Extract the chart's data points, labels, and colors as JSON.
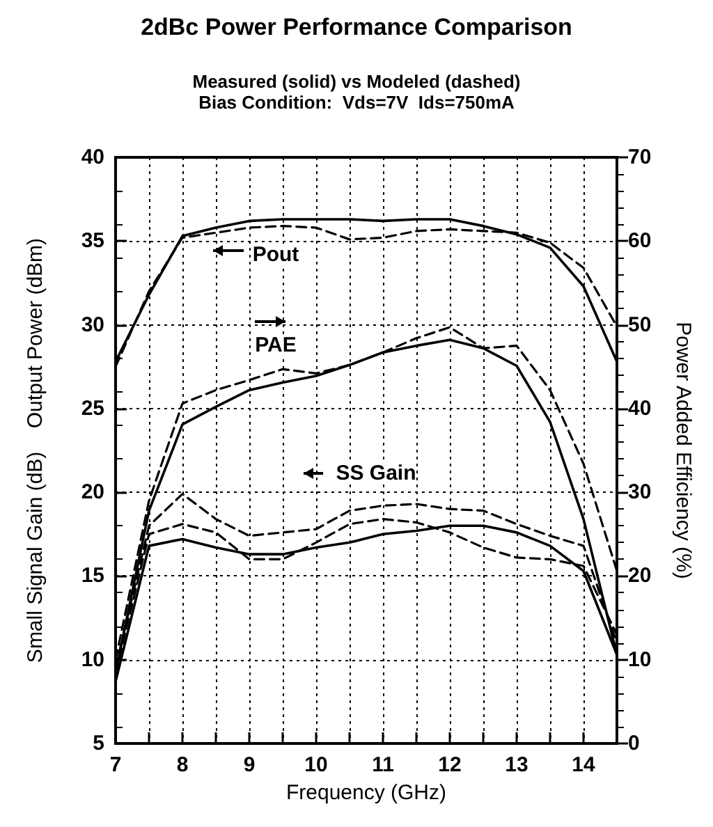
{
  "chart_data": {
    "type": "line",
    "title": "2dBc Power Performance Comparison",
    "subtitle": "Measured (solid) vs Modeled (dashed)\nBias Condition:  Vds=7V  Ids=750mA",
    "xlabel": "Frequency (GHz)",
    "ylabel": "Small Signal Gain (dB)    Output Power (dBm)",
    "y2label": "Power Added Efficiency (%)",
    "x": [
      7,
      7.5,
      8,
      8.5,
      9,
      9.5,
      10,
      10.5,
      11,
      11.5,
      12,
      12.5,
      13,
      13.5,
      14,
      14.5
    ],
    "series": [
      {
        "color": "#000000",
        "line_style": "solid",
        "values": [
          27.8,
          31.8,
          35.3,
          35.8,
          36.2,
          36.3,
          36.3,
          36.3,
          36.2,
          36.3,
          36.3,
          35.9,
          35.4,
          34.6,
          32.3,
          27.8
        ]
      },
      {
        "color": "#000000",
        "line_style": "dashed",
        "values": [
          27.5,
          32.0,
          35.2,
          35.5,
          35.8,
          35.9,
          35.8,
          35.1,
          35.2,
          35.6,
          35.7,
          35.6,
          35.5,
          34.9,
          33.4,
          29.9
        ]
      },
      {
        "color": "#000000",
        "line_style": "solid",
        "axis": "y2",
        "values": [
          8.5,
          27.8,
          38.1,
          40.2,
          42.2,
          43.1,
          43.9,
          45.2,
          46.7,
          47.5,
          48.2,
          47.2,
          45.1,
          38.4,
          26.8,
          10.6
        ]
      },
      {
        "color": "#000000",
        "line_style": "dashed",
        "axis": "y2",
        "values": [
          10,
          29,
          40.6,
          42.2,
          43.4,
          44.7,
          44.2,
          45.2,
          46.7,
          48.4,
          49.7,
          47.2,
          47.5,
          42.2,
          33.4,
          20.6
        ]
      },
      {
        "color": "#000000",
        "line_style": "solid",
        "values": [
          8.7,
          16.8,
          17.2,
          16.7,
          16.3,
          16.3,
          16.7,
          17.0,
          17.5,
          17.7,
          18.0,
          18.0,
          17.6,
          16.8,
          15.3,
          10.3
        ]
      },
      {
        "color": "#000000",
        "line_style": "dashed",
        "values": [
          9.5,
          18.0,
          19.9,
          18.4,
          17.4,
          17.6,
          17.8,
          18.9,
          19.2,
          19.3,
          19.0,
          18.9,
          18.1,
          17.4,
          16.8,
          11.0
        ]
      },
      {
        "color": "#000000",
        "line_style": "dashed",
        "values": [
          9.2,
          17.5,
          18.1,
          17.6,
          16.0,
          16.0,
          17.0,
          18.1,
          18.4,
          18.2,
          17.6,
          16.7,
          16.1,
          16.0,
          15.6,
          11.5
        ]
      }
    ],
    "annotations": [
      "Pout",
      "PAE",
      "SS Gain"
    ],
    "xlim": [
      7,
      14.5
    ],
    "xticks": [
      7,
      {
        "value": 7.5,
        "label": null
      },
      8,
      {
        "value": 8.5,
        "label": null
      },
      9,
      {
        "value": 9.5,
        "label": null
      },
      10,
      {
        "value": 10.5,
        "label": null
      },
      11,
      {
        "value": 11.5,
        "label": null
      },
      12,
      {
        "value": 12.5,
        "label": null
      },
      13,
      {
        "value": 13.5,
        "label": null
      },
      14,
      {
        "value": 14.5,
        "label": null
      }
    ],
    "ylim": [
      5,
      40
    ],
    "yticks": [
      5,
      10,
      15,
      20,
      25,
      30,
      35,
      40
    ],
    "y2lim": [
      0,
      70
    ],
    "y2ticks": [
      0,
      10,
      20,
      30,
      40,
      50,
      60,
      70
    ],
    "grid": true,
    "marker": "none"
  }
}
